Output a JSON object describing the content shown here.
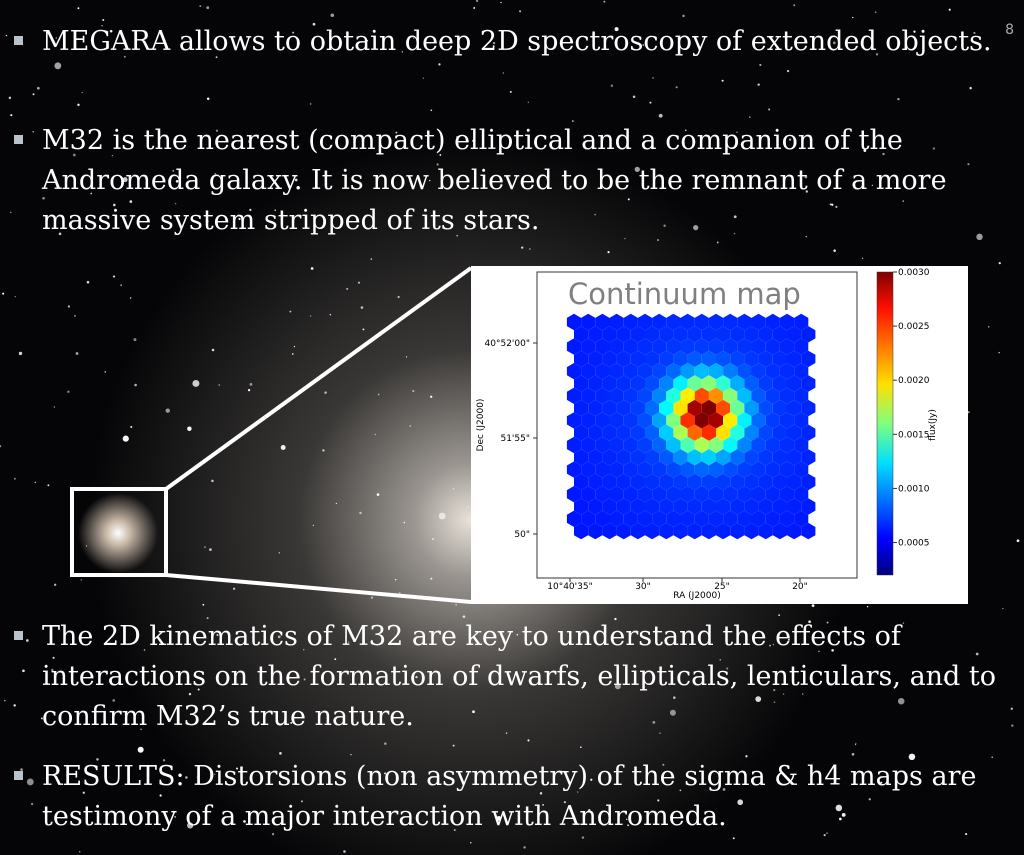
{
  "slide": {
    "page_number": "8",
    "bullets": [
      "MEGARA allows to obtain deep 2D spectroscopy of extended objects.",
      "M32 is the nearest (compact) elliptical and a companion of the Andromeda galaxy. It is now believed to be the remnant of a more massive system stripped of its stars.",
      "The 2D kinematics of M32 are key to understand the effects of interactions on the formation of dwarfs, ellipticals, lenticulars, and to confirm M32’s true nature.",
      "RESULTS: Distorsions (non asymmetry) of the sigma & h4 maps are testimony of a major interaction with Andromeda."
    ]
  },
  "chart_data": {
    "type": "heatmap",
    "title": "Continuum map",
    "x_label": "RA (J2000)",
    "y_label": "Dec (J2000)",
    "x_tick_labels": [
      "10°40'35\"",
      "30\"",
      "25\"",
      "20\""
    ],
    "y_tick_labels": [
      "40°52'00\"",
      "51'55\"",
      "50\""
    ],
    "colorbar_label": "flux(Jy)",
    "clim": [
      0.0002,
      0.003
    ],
    "colorbar_ticks": [
      0.0005,
      {
        "value": 0.001,
        "label": "0.0010"
      },
      0.0015,
      {
        "value": 0.002,
        "label": "0.0020"
      },
      0.0025,
      {
        "value": 0.003,
        "label": "0.0030"
      }
    ]
  }
}
